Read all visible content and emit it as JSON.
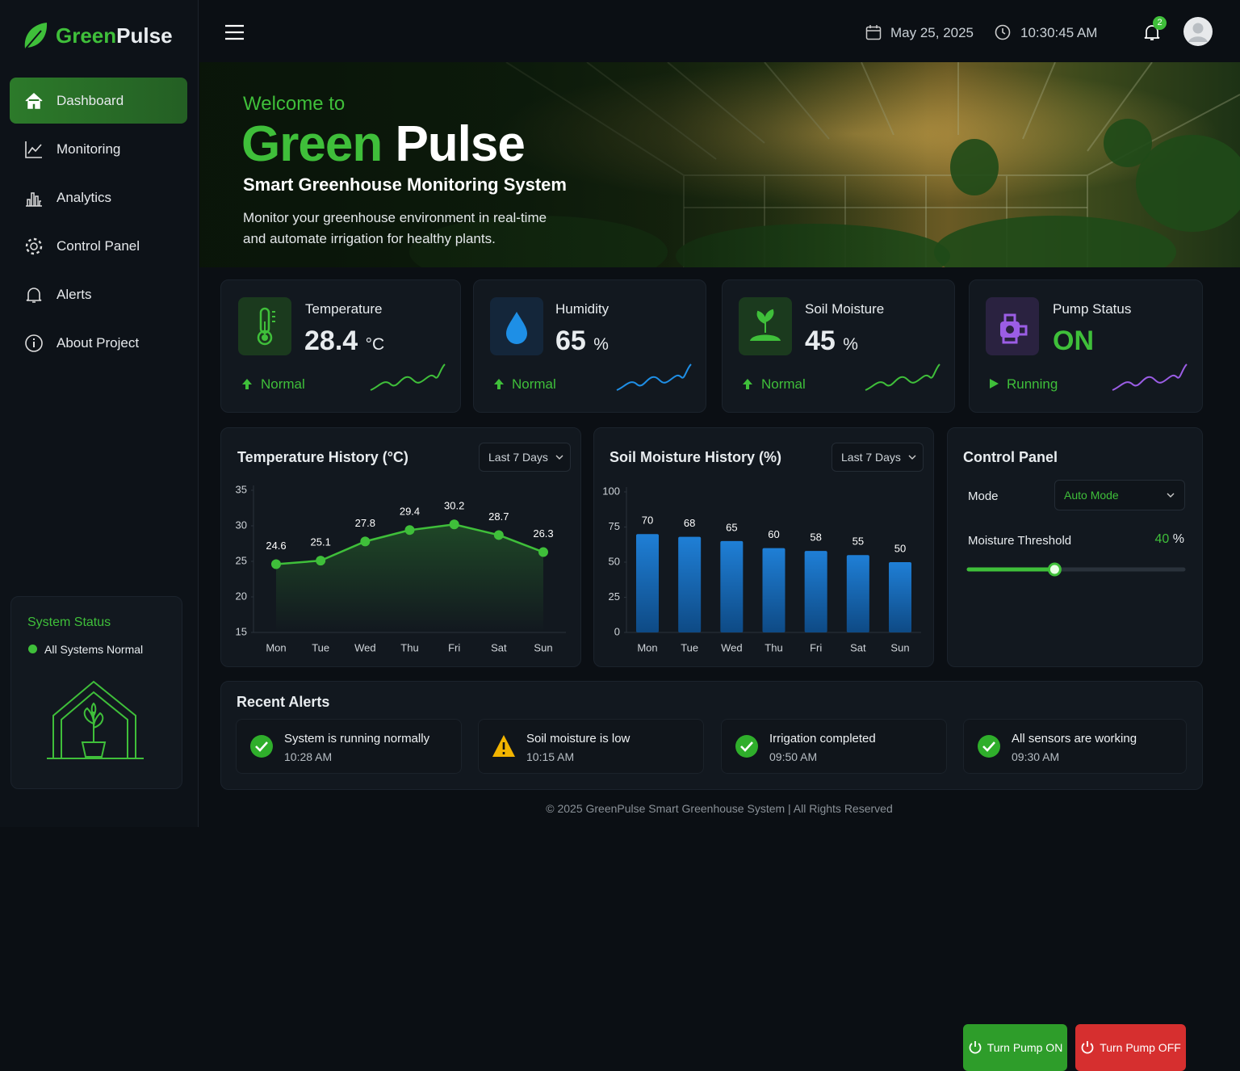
{
  "logo": {
    "part1": "Green",
    "part2": "Pulse"
  },
  "nav": [
    "Dashboard",
    "Monitoring",
    "Analytics",
    "Control Panel",
    "Alerts",
    "About Project"
  ],
  "system_status": {
    "title": "System Status",
    "status": "All Systems Normal"
  },
  "header": {
    "date": "May 25, 2025",
    "time": "10:30:45 AM",
    "notifications": 2
  },
  "hero": {
    "welcome": "Welcome to",
    "title_1": "Green",
    "title_2": "Pulse",
    "subtitle": "Smart Greenhouse Monitoring System",
    "description": "Monitor your greenhouse environment in real-time and automate irrigation for healthy plants."
  },
  "cards": [
    {
      "label": "Temperature",
      "value": 28.4,
      "unit": "°C",
      "status": "Normal"
    },
    {
      "label": "Humidity",
      "value": 65,
      "unit": "%",
      "status": "Normal"
    },
    {
      "label": "Soil Moisture",
      "value": 45,
      "unit": "%",
      "status": "Normal"
    },
    {
      "label": "Pump Status",
      "value": "ON",
      "status": "Running"
    }
  ],
  "chart_data": [
    {
      "type": "line",
      "title": "Temperature History (°C)",
      "filter": "Last 7 Days",
      "categories": [
        "Mon",
        "Tue",
        "Wed",
        "Thu",
        "Fri",
        "Sat",
        "Sun"
      ],
      "values": [
        24.6,
        25.1,
        27.8,
        29.4,
        30.2,
        28.7,
        26.3
      ],
      "color": "#3fbf3a",
      "ylim": [
        15,
        35
      ],
      "yticks": [
        15,
        20,
        25,
        30,
        35
      ]
    },
    {
      "type": "bar",
      "title": "Soil Moisture History (%)",
      "filter": "Last 7 Days",
      "categories": [
        "Mon",
        "Tue",
        "Wed",
        "Thu",
        "Fri",
        "Sat",
        "Sun"
      ],
      "values": [
        70,
        68,
        65,
        60,
        58,
        55,
        50
      ],
      "color": "#1f7fd6",
      "ylim": [
        0,
        100
      ],
      "yticks": [
        0,
        25,
        50,
        75,
        100
      ]
    }
  ],
  "control_panel": {
    "title": "Control Panel",
    "mode_label": "Mode",
    "mode": "Auto Mode",
    "threshold_label": "Moisture Threshold",
    "threshold": 40,
    "threshold_unit": "%",
    "on_button": "Turn Pump ON",
    "off_button": "Turn Pump OFF"
  },
  "alerts": {
    "title": "Recent Alerts",
    "items": [
      {
        "text": "System is running normally",
        "time": "10:28 AM"
      },
      {
        "text": "Soil moisture is low",
        "time": "10:15 AM"
      },
      {
        "text": "Irrigation completed",
        "time": "09:50 AM"
      },
      {
        "text": "All sensors are working",
        "time": "09:30 AM"
      }
    ]
  },
  "footer": "© 2025 GreenPulse Smart Greenhouse System | All Rights Reserved"
}
